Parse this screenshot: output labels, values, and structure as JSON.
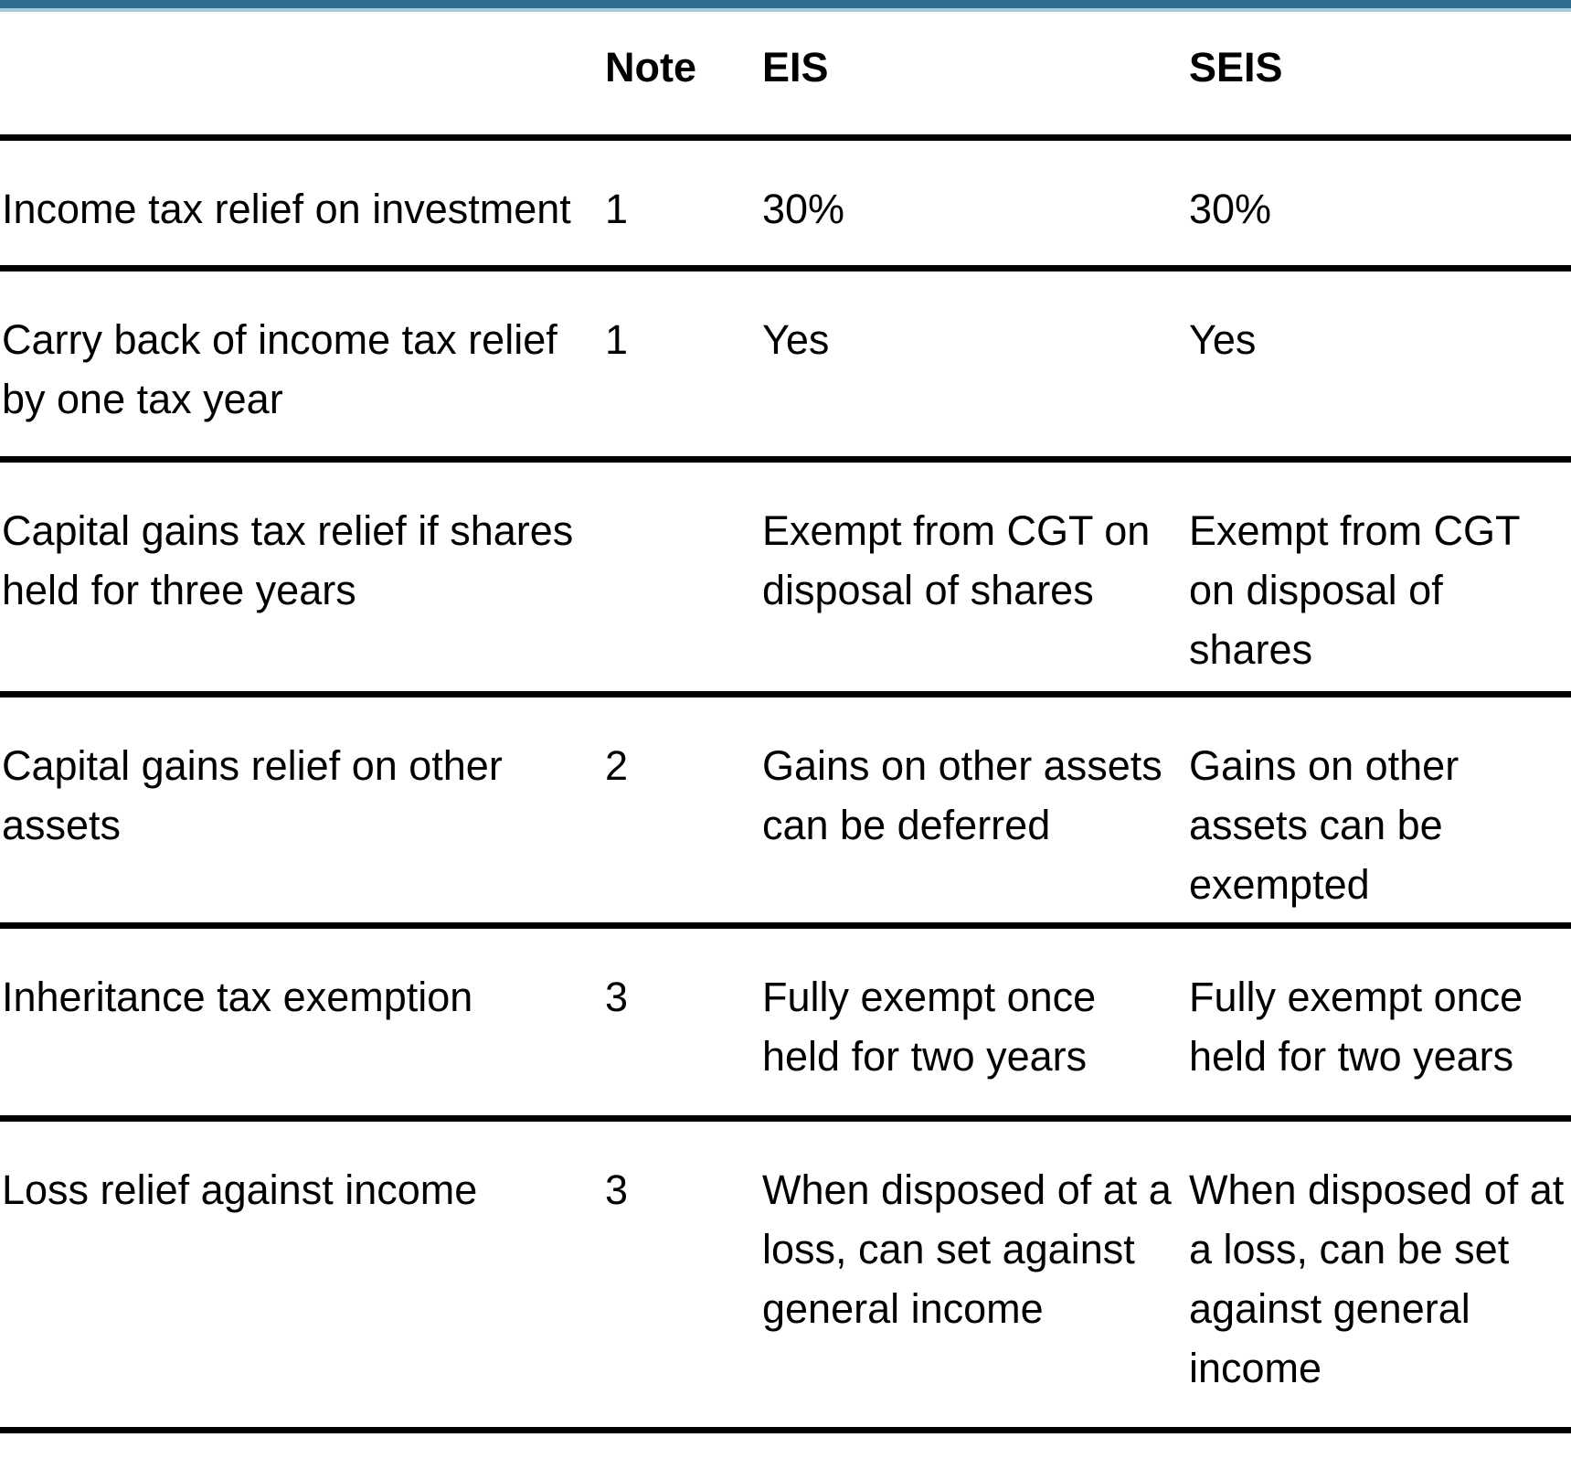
{
  "colors": {
    "top_bar": "#2e6d8e",
    "top_bar_light": "#a7cddd",
    "rule": "#000000",
    "text": "#000000"
  },
  "table": {
    "columns": [
      {
        "key": "label",
        "header": ""
      },
      {
        "key": "note",
        "header": "Note"
      },
      {
        "key": "eis",
        "header": "EIS"
      },
      {
        "key": "seis",
        "header": "SEIS"
      }
    ],
    "rows": [
      {
        "label": "Income tax relief on investment",
        "note": "1",
        "eis": "30%",
        "seis": "30%"
      },
      {
        "label": "Carry back of income tax relief\nby one tax year",
        "note": "1",
        "eis": "Yes",
        "seis": "Yes"
      },
      {
        "label": "Capital gains tax relief if shares\nheld for three years",
        "note": "",
        "eis": "Exempt from CGT on\ndisposal of shares",
        "seis": "Exempt from CGT\non disposal of\nshares"
      },
      {
        "label": "Capital gains relief on other\nassets",
        "note": "2",
        "eis": "Gains on other assets\ncan be deferred",
        "seis": "Gains on other\nassets can be\nexempted"
      },
      {
        "label": "Inheritance tax exemption",
        "note": "3",
        "eis": "Fully exempt once\nheld for two years",
        "seis": "Fully exempt once\nheld for two years"
      },
      {
        "label": "Loss relief against income",
        "note": "3",
        "eis": "When disposed of at a\nloss, can set against\ngeneral income",
        "seis": "When disposed of at\na loss, can be set\nagainst general\nincome"
      }
    ]
  }
}
